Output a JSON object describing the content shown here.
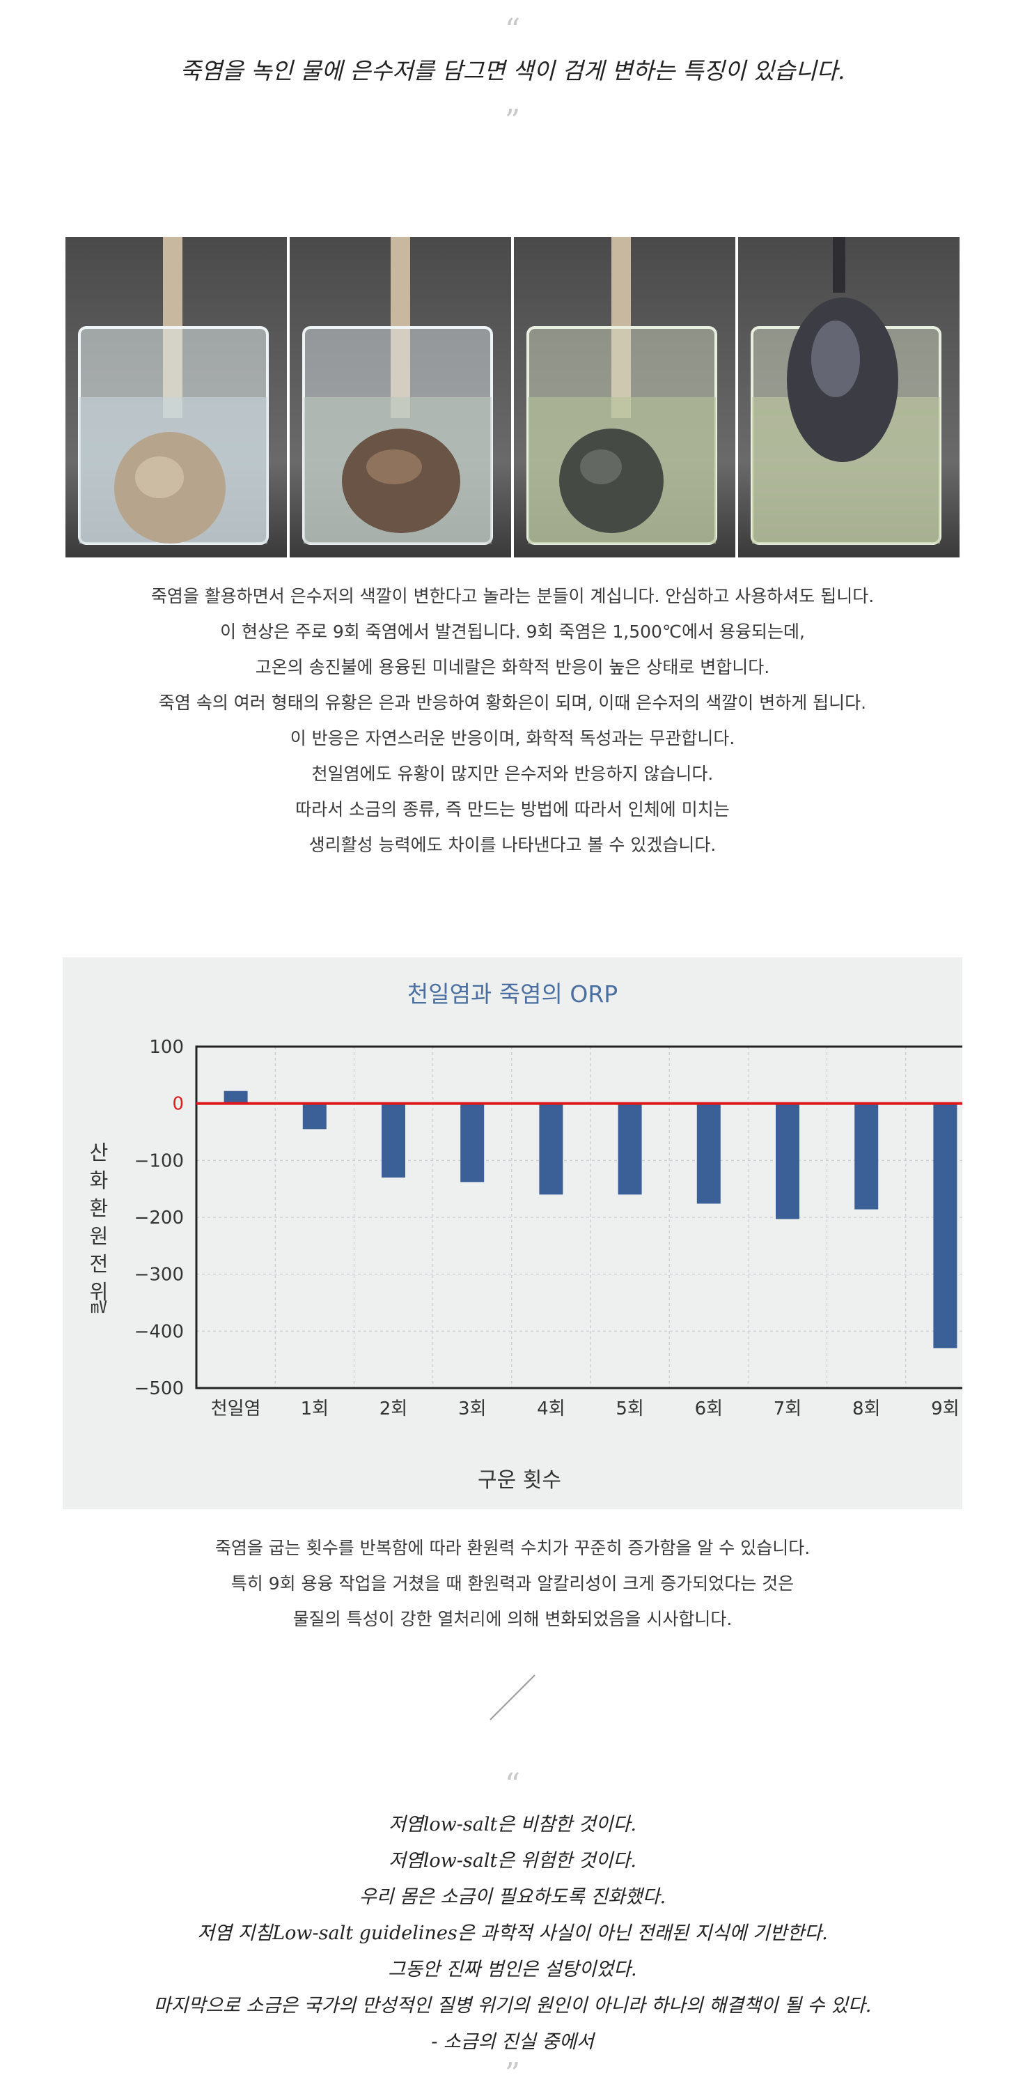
{
  "top_quote": {
    "open_mark": "“",
    "text": "죽염을 녹인 물에 은수저를 담그면 색이 검게 변하는 특징이 있습니다.",
    "close_mark": "”"
  },
  "photos": [
    {
      "icon": "beaker-spoon-clear"
    },
    {
      "icon": "beaker-spoon-bronze"
    },
    {
      "icon": "beaker-spoon-dark"
    },
    {
      "icon": "beaker-spoon-black-lifted"
    }
  ],
  "paragraph1": [
    "죽염을 활용하면서 은수저의 색깔이 변한다고 놀라는 분들이 계십니다. 안심하고 사용하셔도 됩니다.",
    "이 현상은 주로 9회 죽염에서 발견됩니다. 9회 죽염은 1,500℃에서 용융되는데,",
    "고온의 송진불에 용융된 미네랄은 화학적 반응이 높은 상태로 변합니다.",
    "죽염 속의 여러 형태의 유황은 은과 반응하여 황화은이 되며, 이때 은수저의 색깔이 변하게 됩니다.",
    "이 반응은 자연스러운 반응이며, 화학적 독성과는 무관합니다.",
    "천일염에도 유황이 많지만 은수저와 반응하지 않습니다.",
    "따라서 소금의 종류, 즉 만드는 방법에 따라서 인체에 미치는",
    "생리활성 능력에도 차이를 나타낸다고 볼 수 있겠습니다."
  ],
  "chart_data": {
    "type": "bar",
    "title": "천일염과 죽염의 ORP",
    "xlabel": "구운 횟수",
    "ylabel": "산화 환원 전위",
    "yunit": "㎷",
    "categories": [
      "천일염",
      "1회",
      "2회",
      "3회",
      "4회",
      "5회",
      "6회",
      "7회",
      "8회",
      "9회"
    ],
    "values": [
      22,
      -45,
      -130,
      -138,
      -160,
      -160,
      -176,
      -203,
      -186,
      -430
    ],
    "ylim": [
      -500,
      100
    ],
    "yticks": [
      100,
      0,
      -100,
      -200,
      -300,
      -400,
      -500
    ],
    "ytick_labels": [
      "100",
      "0",
      "−100",
      "−200",
      "−300",
      "−400",
      "−500"
    ],
    "grid": true,
    "reference_line": 0,
    "colors": {
      "bar": "#3b5f97",
      "reference": "#e0181b",
      "title": "#4a6fa0",
      "panel": "#eef0ef",
      "zero_label": "#d8201f"
    }
  },
  "paragraph2": [
    "죽염을 굽는 횟수를 반복함에 따라 환원력 수치가 꾸준히 증가함을 알 수 있습니다.",
    "특히 9회 용융 작업을 거쳤을 때 환원력과 알칼리성이 크게 증가되었다는 것은",
    "물질의 특성이 강한 열처리에 의해 변화되었음을 시사합니다."
  ],
  "bottom_quote": {
    "open_mark": "“",
    "lines": [
      "저염low-salt은 비참한 것이다.",
      "저염low-salt은 위험한 것이다.",
      "우리 몸은 소금이 필요하도록 진화했다.",
      "저염 지침Low-salt guidelines은 과학적 사실이 아닌 전래된 지식에 기반한다.",
      "그동안 진짜 범인은 설탕이었다.",
      "마지막으로 소금은 국가의 만성적인 질병 위기의 원인이 아니라 하나의 해결책이 될 수 있다.",
      "- 소금의 진실 중에서"
    ],
    "close_mark": "”"
  }
}
